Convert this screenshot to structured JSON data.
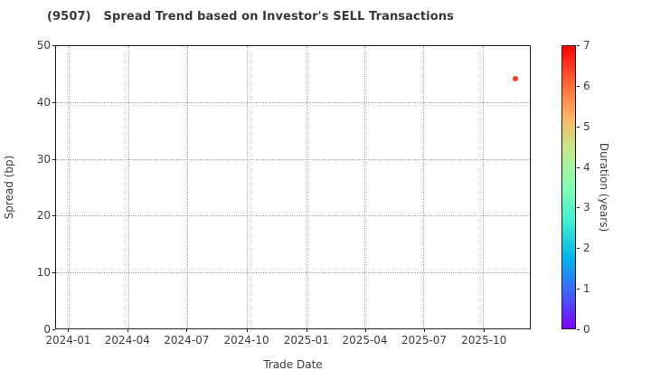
{
  "chart_data": {
    "type": "scatter",
    "title": "(9507)   Spread Trend based on Investor's SELL Transactions",
    "xlabel": "Trade Date",
    "ylabel": "Spread (bp)",
    "colorbar_label": "Duration (years)",
    "grid": true,
    "xlim": [
      "2023-12-12",
      "2025-12-12"
    ],
    "ylim": [
      0,
      50
    ],
    "x_ticks": [
      {
        "label": "2024-01",
        "date": "2024-01-01"
      },
      {
        "label": "2024-04",
        "date": "2024-04-01"
      },
      {
        "label": "2024-07",
        "date": "2024-07-01"
      },
      {
        "label": "2024-10",
        "date": "2024-10-01"
      },
      {
        "label": "2025-01",
        "date": "2025-01-01"
      },
      {
        "label": "2025-04",
        "date": "2025-04-01"
      },
      {
        "label": "2025-07",
        "date": "2025-07-01"
      },
      {
        "label": "2025-10",
        "date": "2025-10-01"
      }
    ],
    "y_ticks": [
      0,
      10,
      20,
      30,
      40,
      50
    ],
    "colorbar": {
      "range": [
        0,
        7
      ],
      "ticks": [
        0,
        1,
        2,
        3,
        4,
        5,
        6,
        7
      ],
      "colormap": "rainbow",
      "gradient_stops_bottom_to_top": [
        "#7f00ff",
        "#4062fa",
        "#00b4ec",
        "#40ecd4",
        "#80ffb4",
        "#bfec8e",
        "#ffb462",
        "#ff6232",
        "#ff0000"
      ]
    },
    "points": [
      {
        "date": "2025-11-20",
        "spread_bp": 44.2,
        "duration_years": 6.4,
        "color": "#f13b22"
      }
    ]
  }
}
